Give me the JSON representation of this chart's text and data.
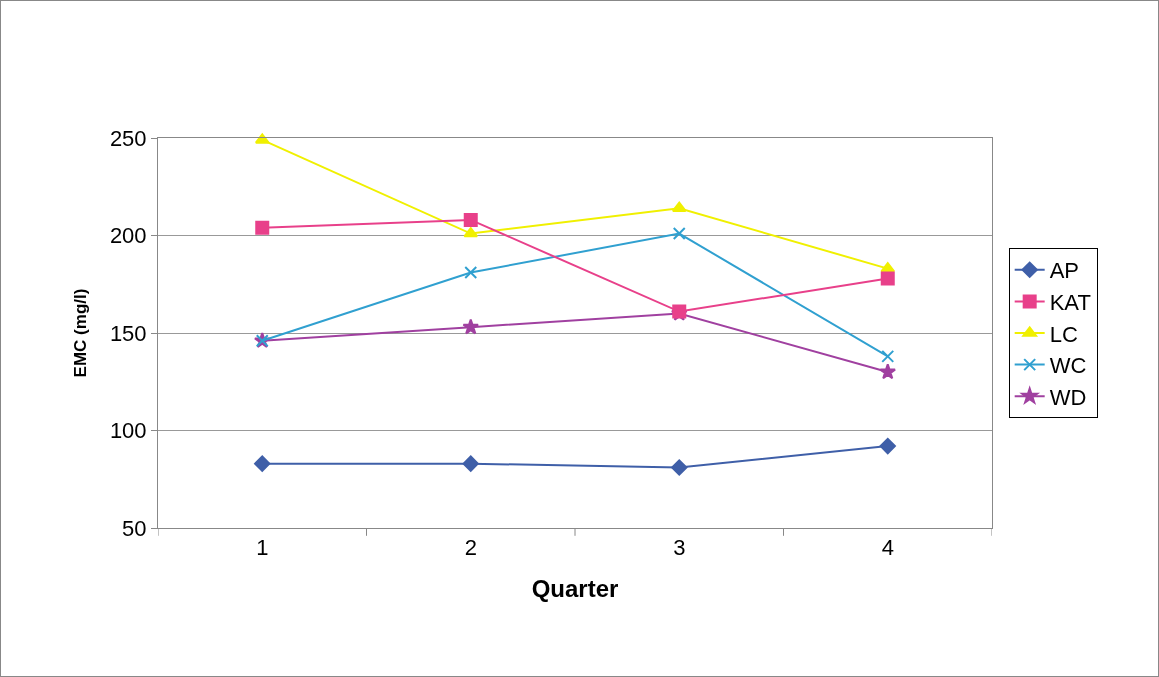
{
  "chart_data": {
    "type": "line",
    "xlabel": "Quarter",
    "ylabel": "EMC (mg/l)",
    "categories": [
      "1",
      "2",
      "3",
      "4"
    ],
    "ylim": [
      50,
      250
    ],
    "yticks": [
      50,
      100,
      150,
      200,
      250
    ],
    "grid": "y",
    "legend": "right",
    "series": [
      {
        "name": "AP",
        "color": "#3f5fa8",
        "marker": "diamond",
        "values": [
          83,
          83,
          81,
          92
        ]
      },
      {
        "name": "KAT",
        "color": "#e8408a",
        "marker": "square",
        "values": [
          204,
          208,
          161,
          178
        ]
      },
      {
        "name": "LC",
        "color": "#f0f000",
        "marker": "triangle",
        "values": [
          249,
          201,
          214,
          183
        ]
      },
      {
        "name": "WC",
        "color": "#30a0d0",
        "marker": "cross",
        "values": [
          146,
          181,
          201,
          138
        ]
      },
      {
        "name": "WD",
        "color": "#a040a0",
        "marker": "star",
        "values": [
          146,
          153,
          160,
          130
        ]
      }
    ]
  }
}
